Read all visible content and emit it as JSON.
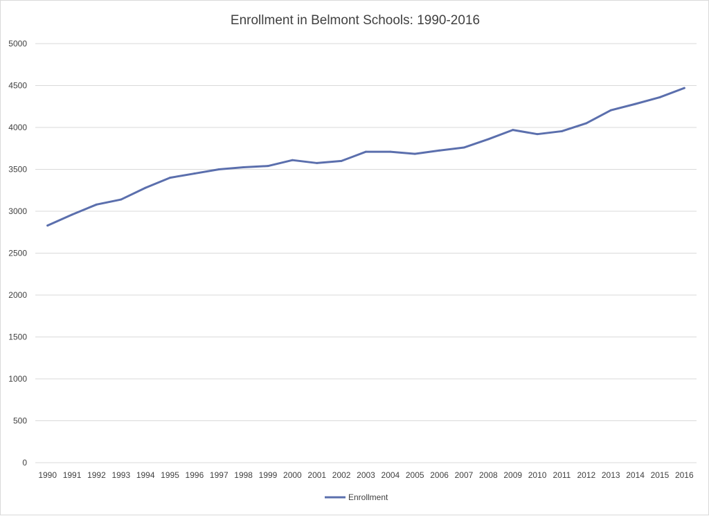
{
  "chart_data": {
    "type": "line",
    "title": "Enrollment in Belmont Schools: 1990-2016",
    "xlabel": "",
    "ylabel": "",
    "categories": [
      "1990",
      "1991",
      "1992",
      "1993",
      "1994",
      "1995",
      "1996",
      "1997",
      "1998",
      "1999",
      "2000",
      "2001",
      "2002",
      "2003",
      "2004",
      "2005",
      "2006",
      "2007",
      "2008",
      "2009",
      "2010",
      "2011",
      "2012",
      "2013",
      "2014",
      "2015",
      "2016"
    ],
    "series": [
      {
        "name": "Enrollment",
        "color": "#5b6fad",
        "values": [
          2830,
          2960,
          3080,
          3140,
          3280,
          3400,
          3450,
          3500,
          3525,
          3540,
          3610,
          3575,
          3600,
          3710,
          3710,
          3685,
          3725,
          3760,
          3860,
          3970,
          3920,
          3955,
          4050,
          4205,
          4280,
          4360,
          4470
        ]
      }
    ],
    "ylim": [
      0,
      5000
    ],
    "yticks": [
      "0",
      "500",
      "1000",
      "1500",
      "2000",
      "2500",
      "3000",
      "3500",
      "4000",
      "4500",
      "5000"
    ],
    "grid": "horizontal",
    "legend_position": "bottom-center",
    "grid_color": "#d9d9d9"
  }
}
